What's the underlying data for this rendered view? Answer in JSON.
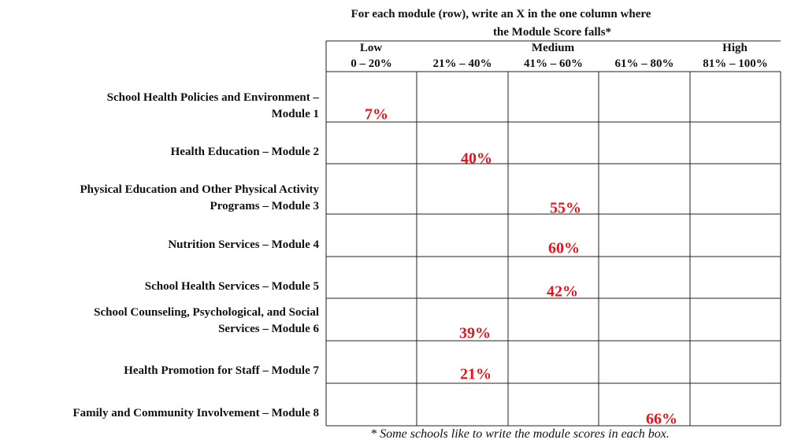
{
  "instruction": [
    "For each module (row), write an X in the one column where",
    "the Module Score falls*"
  ],
  "columns": [
    {
      "level": "Low",
      "range": "0 – 20%"
    },
    {
      "range": "21% – 40%"
    },
    {
      "level": "Medium",
      "range": "41% – 60%"
    },
    {
      "range": "61% – 80%"
    },
    {
      "level": "High",
      "range": "81% – 100%"
    }
  ],
  "rows": [
    {
      "label": [
        "School Health Policies and Environment –",
        "Module 1"
      ],
      "score": "7%"
    },
    {
      "label": [
        "Health Education – Module 2"
      ],
      "score": "40%"
    },
    {
      "label": [
        "Physical Education and Other Physical Activity",
        "Programs – Module 3"
      ],
      "score": "55%"
    },
    {
      "label": [
        "Nutrition Services – Module 4"
      ],
      "score": "60%"
    },
    {
      "label": [
        "School Health Services – Module 5"
      ],
      "score": "42%"
    },
    {
      "label": [
        "School Counseling, Psychological, and Social",
        "Services – Module 6"
      ],
      "score": "39%"
    },
    {
      "label": [
        "Health Promotion for Staff – Module 7"
      ],
      "score": "21%"
    },
    {
      "label": [
        "Family and Community Involvement – Module 8"
      ],
      "score": "66%"
    }
  ],
  "footnote": "* Some schools like to write the module scores in each box."
}
